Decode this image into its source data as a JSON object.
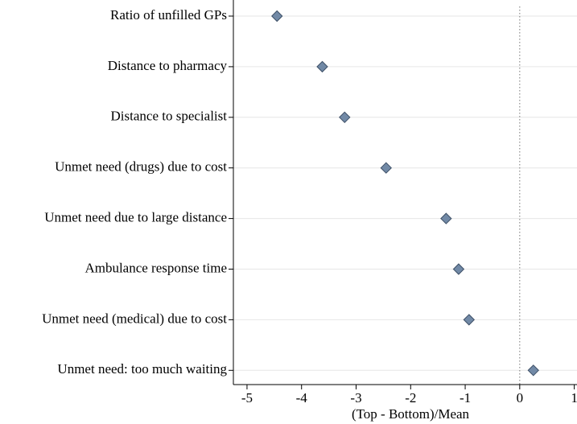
{
  "chart_data": {
    "type": "dot",
    "categories": [
      "Ratio of unfilled GPs",
      "Distance to pharmacy",
      "Distance to specialist",
      "Unmet need (drugs) due to cost",
      "Unmet need due to large distance",
      "Ambulance response time",
      "Unmet need (medical) due to cost",
      "Unmet need: too much waiting"
    ],
    "values": [
      -4.45,
      -3.62,
      -3.21,
      -2.45,
      -1.35,
      -1.12,
      -0.93,
      0.25
    ],
    "color": "#7189a6",
    "xlabel": "(Top - Bottom)/Mean",
    "xlim": [
      -5.25,
      1.05
    ],
    "xticks": [
      -5,
      -4,
      -3,
      -2,
      -1,
      0,
      1
    ],
    "reference_line": 0,
    "grid": true
  }
}
